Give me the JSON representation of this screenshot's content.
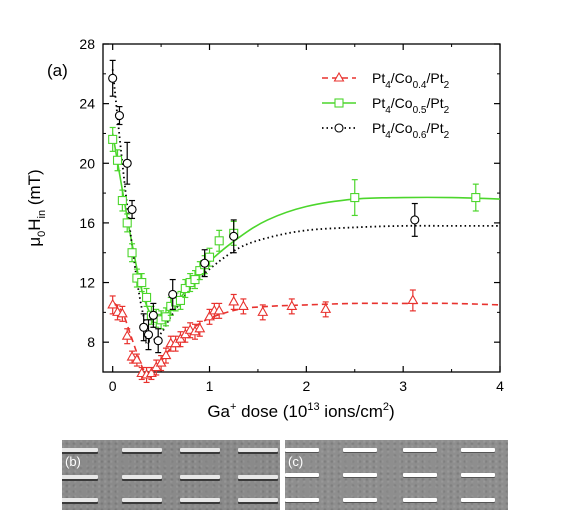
{
  "chart_data": {
    "type": "scatter",
    "panel_label": "(a)",
    "xlabel": "Ga⁺ dose (10¹³ ions/cm²)",
    "ylabel": "μ₀Hᵢₙ (mT)",
    "xlim": [
      -0.1,
      4
    ],
    "ylim": [
      6,
      28
    ],
    "x_ticks": [
      0,
      1,
      2,
      3,
      4
    ],
    "y_ticks": [
      8,
      12,
      16,
      20,
      24,
      28
    ],
    "legend_position": "top-right",
    "grid": false,
    "series": [
      {
        "name": "Pt4/Co0.4/Pt2",
        "legend": {
          "main": "Pt",
          "parts": [
            [
              "4",
              "/Co"
            ],
            [
              "0.4",
              "/Pt"
            ],
            [
              "2",
              ""
            ]
          ]
        },
        "color": "#e8322e",
        "marker": "triangle",
        "line_style": "dashed",
        "x": [
          0.0,
          0.05,
          0.1,
          0.15,
          0.2,
          0.25,
          0.3,
          0.35,
          0.4,
          0.45,
          0.5,
          0.55,
          0.6,
          0.65,
          0.7,
          0.75,
          0.8,
          0.85,
          0.9,
          1.0,
          1.05,
          1.1,
          1.25,
          1.35,
          1.55,
          1.85,
          2.2,
          3.1
        ],
        "y": [
          10.5,
          10.0,
          9.9,
          8.4,
          7.0,
          6.8,
          5.9,
          5.8,
          5.9,
          6.3,
          6.6,
          7.1,
          7.9,
          7.9,
          8.2,
          8.5,
          8.8,
          8.7,
          8.9,
          9.7,
          10.1,
          10.1,
          10.7,
          10.4,
          10.0,
          10.4,
          10.2,
          10.8
        ],
        "err": [
          0.6,
          0.5,
          0.5,
          0.5,
          0.4,
          0.4,
          0.4,
          0.5,
          0.4,
          0.5,
          0.5,
          0.5,
          0.5,
          0.5,
          0.5,
          0.5,
          0.5,
          0.5,
          0.5,
          0.5,
          0.5,
          0.5,
          0.5,
          0.5,
          0.5,
          0.5,
          0.5,
          0.7
        ],
        "fit_x": [
          0,
          0.1,
          0.2,
          0.3,
          0.35,
          0.4,
          0.5,
          0.6,
          0.8,
          1.0,
          1.3,
          1.6,
          2.0,
          2.5,
          3.0,
          3.5,
          4.0
        ],
        "fit_y": [
          10.7,
          10.0,
          8.2,
          6.4,
          5.9,
          6.0,
          6.7,
          7.6,
          8.8,
          9.6,
          10.2,
          10.4,
          10.5,
          10.6,
          10.6,
          10.6,
          10.5
        ]
      },
      {
        "name": "Pt4/Co0.5/Pt2",
        "legend": {
          "main": "Pt",
          "parts": [
            [
              "4",
              "/Co"
            ],
            [
              "0.5",
              "/Pt"
            ],
            [
              "2",
              ""
            ]
          ]
        },
        "color": "#4cd62c",
        "marker": "square",
        "line_style": "solid",
        "x": [
          0.0,
          0.05,
          0.1,
          0.15,
          0.2,
          0.25,
          0.3,
          0.35,
          0.4,
          0.45,
          0.5,
          0.55,
          0.6,
          0.65,
          0.7,
          0.75,
          0.8,
          0.85,
          0.9,
          0.95,
          1.0,
          1.1,
          1.25,
          2.5,
          3.75
        ],
        "y": [
          21.6,
          20.2,
          17.5,
          16.0,
          14.0,
          12.3,
          12.0,
          11.0,
          9.8,
          9.6,
          9.5,
          9.7,
          10.4,
          10.7,
          10.8,
          11.6,
          12.0,
          12.2,
          12.8,
          13.2,
          13.7,
          14.8,
          15.3,
          17.7,
          17.7
        ],
        "err": [
          0.8,
          0.7,
          0.7,
          0.6,
          0.6,
          0.6,
          0.6,
          0.6,
          0.6,
          0.6,
          0.6,
          0.6,
          0.6,
          0.6,
          0.6,
          0.6,
          0.6,
          0.6,
          0.6,
          0.6,
          0.6,
          0.7,
          0.8,
          1.2,
          0.9
        ],
        "fit_x": [
          0,
          0.1,
          0.2,
          0.3,
          0.4,
          0.5,
          0.6,
          0.8,
          1.0,
          1.3,
          1.6,
          2.0,
          2.5,
          3.0,
          3.5,
          4.0
        ],
        "fit_y": [
          22.0,
          18.2,
          14.6,
          11.5,
          9.8,
          9.6,
          10.2,
          11.8,
          13.4,
          15.0,
          16.2,
          17.1,
          17.6,
          17.7,
          17.7,
          17.6
        ]
      },
      {
        "name": "Pt4/Co0.6/Pt2",
        "legend": {
          "main": "Pt",
          "parts": [
            [
              "4",
              "/Co"
            ],
            [
              "0.6",
              "/Pt"
            ],
            [
              "2",
              ""
            ]
          ]
        },
        "color": "#000000",
        "marker": "circle",
        "line_style": "dotted",
        "x": [
          0.0,
          0.07,
          0.15,
          0.2,
          0.32,
          0.37,
          0.42,
          0.47,
          0.62,
          0.95,
          1.25,
          3.12
        ],
        "y": [
          25.7,
          23.2,
          20.0,
          16.9,
          9.0,
          8.5,
          9.8,
          8.1,
          11.2,
          13.3,
          15.1,
          16.2
        ],
        "err": [
          1.2,
          0.6,
          1.4,
          0.6,
          0.9,
          1.0,
          0.8,
          0.8,
          1.0,
          0.9,
          1.1,
          1.1
        ],
        "fit_x": [
          0,
          0.1,
          0.2,
          0.3,
          0.4,
          0.5,
          0.6,
          0.8,
          1.0,
          1.3,
          1.6,
          2.0,
          2.5,
          3.0,
          3.5,
          4.0
        ],
        "fit_y": [
          26.3,
          20.0,
          14.5,
          10.3,
          8.3,
          8.6,
          9.7,
          11.6,
          12.9,
          14.3,
          15.0,
          15.5,
          15.7,
          15.8,
          15.8,
          15.8
        ]
      }
    ],
    "annotations": [
      {
        "text": "b",
        "x": 0.36,
        "y": 7.9
      }
    ]
  },
  "insets": [
    {
      "label": "(b)",
      "image": "SEM micrograph of rectangular stripes, darker contrast"
    },
    {
      "label": "(c)",
      "image": "SEM micrograph of rectangular stripes, brighter contrast"
    }
  ]
}
